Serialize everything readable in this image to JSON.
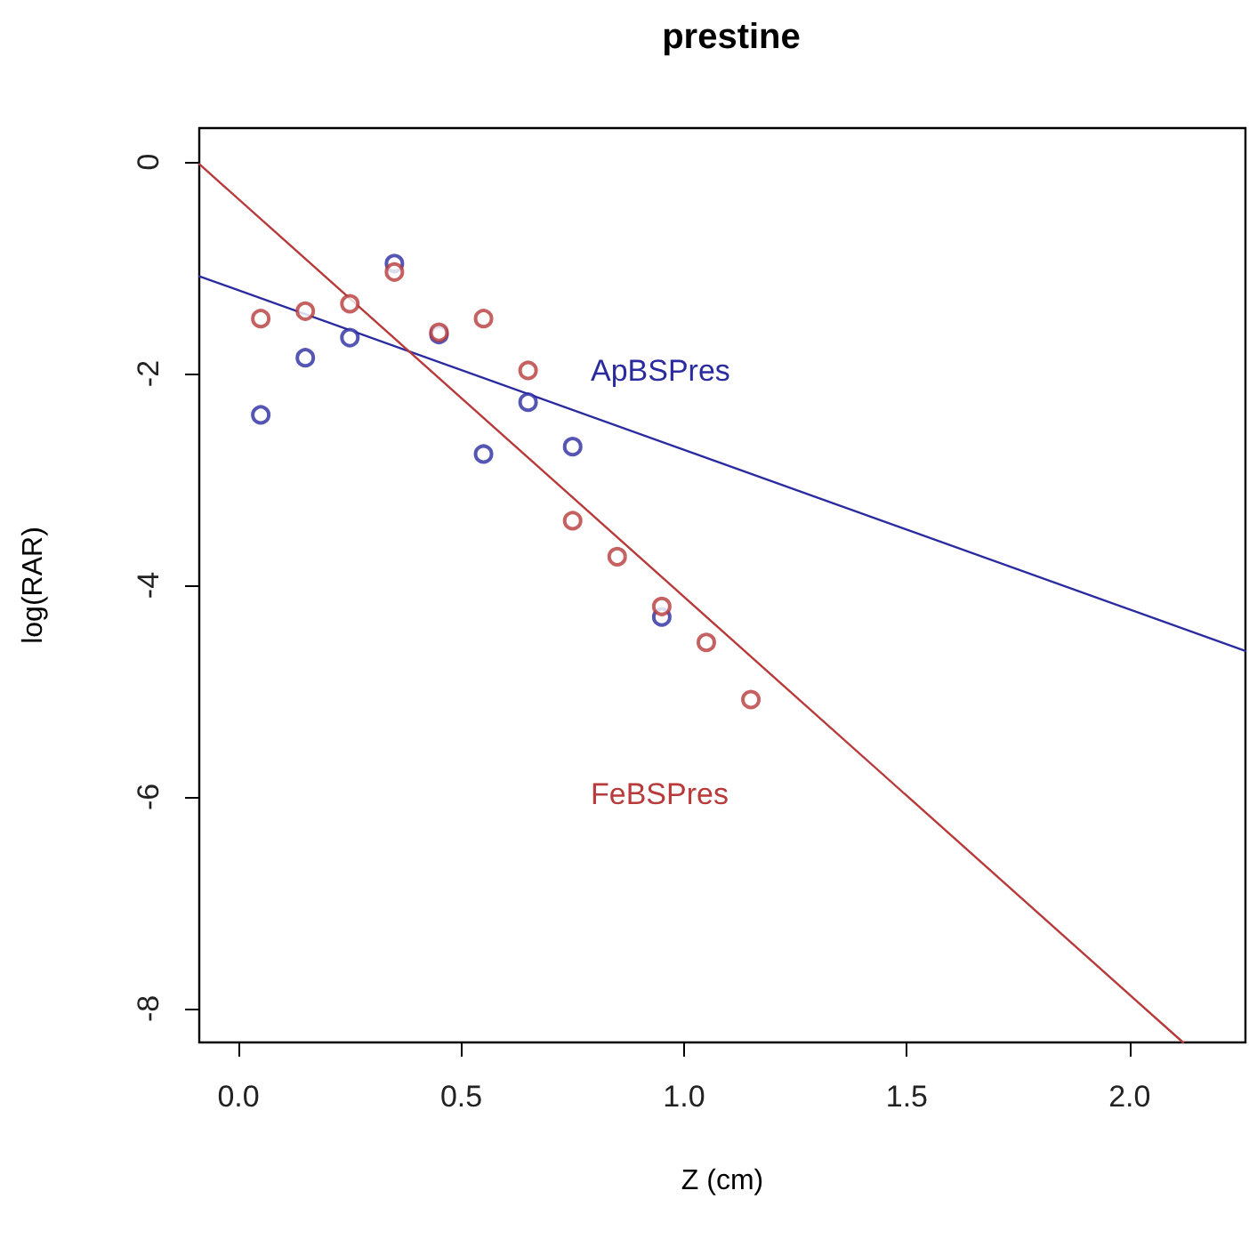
{
  "chart_data": {
    "type": "scatter",
    "title": "prestine",
    "xlabel": "Z (cm)",
    "ylabel": "log(RAR)",
    "xlim": [
      -0.088,
      2.26
    ],
    "ylim": [
      -8.32,
      0.32
    ],
    "xticks": [
      {
        "value": 0,
        "label": "0.0"
      },
      0.5,
      {
        "value": 1,
        "label": "1.0"
      },
      1.5,
      {
        "value": 2,
        "label": "2.0"
      }
    ],
    "yticks": [
      -8,
      -6,
      -4,
      -2,
      0
    ],
    "grid": false,
    "marker": "circle",
    "series": [
      {
        "name": "ApBSPres",
        "color": "#2b2ba0",
        "x": [
          0.05,
          0.15,
          0.25,
          0.35,
          0.45,
          0.55,
          0.65,
          0.75,
          0.95
        ],
        "values": [
          -2.39,
          -1.85,
          -1.66,
          -0.96,
          -1.63,
          -2.76,
          -2.27,
          -2.69,
          -4.3
        ]
      },
      {
        "name": "FeBSPres",
        "color": "#b83a3a",
        "x": [
          0.05,
          0.15,
          0.25,
          0.35,
          0.45,
          0.55,
          0.65,
          0.75,
          0.85,
          0.95,
          1.05,
          1.15
        ],
        "values": [
          -1.48,
          -1.41,
          -1.34,
          -1.04,
          -1.61,
          -1.48,
          -1.97,
          -3.39,
          -3.73,
          -4.2,
          -4.54,
          -5.08
        ]
      },
      {
        "type": "line",
        "color": "#2b2ba0",
        "marker": "none",
        "x": [
          -0.088,
          2.26
        ],
        "values": [
          -1.08,
          -4.62
        ]
      },
      {
        "type": "line",
        "color": "#b83a3a",
        "marker": "none",
        "x": [
          -0.088,
          2.12
        ],
        "values": [
          -0.02,
          -8.32
        ]
      }
    ]
  }
}
